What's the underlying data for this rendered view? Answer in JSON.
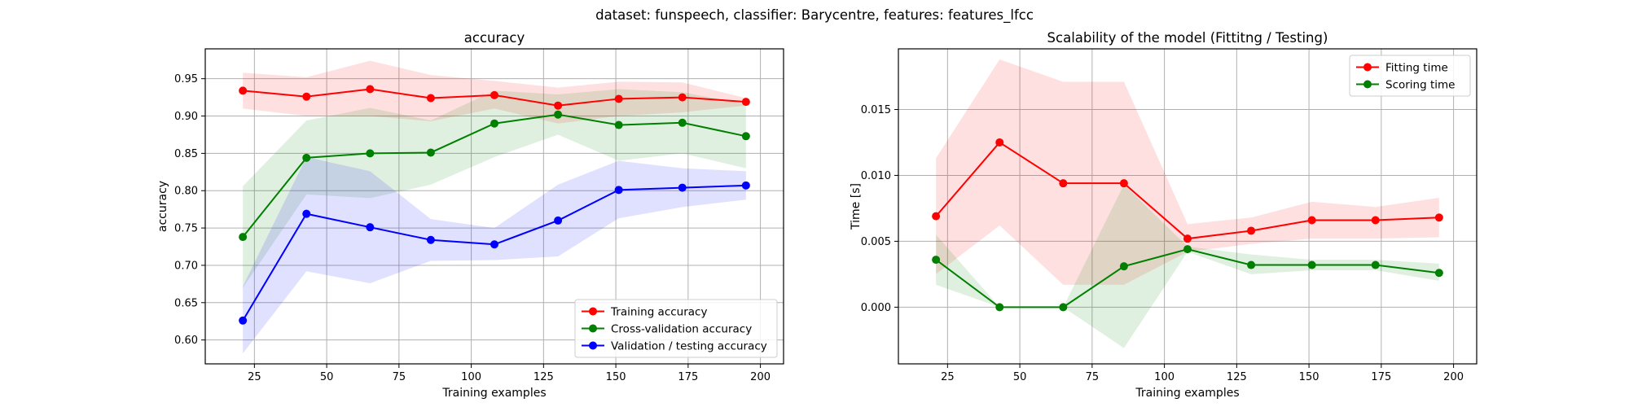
{
  "figure": {
    "suptitle": "dataset: funspeech, classifier: Barycentre, features: features_lfcc"
  },
  "chart_data": [
    {
      "type": "line",
      "title": "accuracy",
      "xlabel": "Training examples",
      "ylabel": "accuracy",
      "xlim": [
        8,
        208
      ],
      "ylim": [
        0.568,
        0.99
      ],
      "xticks": [
        25,
        50,
        75,
        100,
        125,
        150,
        175,
        200
      ],
      "yticks": [
        0.6,
        0.65,
        0.7,
        0.75,
        0.8,
        0.85,
        0.9,
        0.95
      ],
      "ytick_labels": [
        "0.60",
        "0.65",
        "0.70",
        "0.75",
        "0.80",
        "0.85",
        "0.90",
        "0.95"
      ],
      "grid": true,
      "legend_placement": "lower-right",
      "x": [
        21,
        43,
        65,
        86,
        108,
        130,
        151,
        173,
        195
      ],
      "series": [
        {
          "name": "Training accuracy",
          "color": "#ff0000",
          "values": [
            0.934,
            0.926,
            0.936,
            0.924,
            0.928,
            0.914,
            0.923,
            0.925,
            0.919
          ],
          "band_lower": [
            0.91,
            0.9,
            0.9,
            0.893,
            0.91,
            0.89,
            0.9,
            0.905,
            0.914
          ],
          "band_upper": [
            0.958,
            0.952,
            0.974,
            0.955,
            0.947,
            0.938,
            0.946,
            0.945,
            0.924
          ]
        },
        {
          "name": "Cross-validation accuracy",
          "color": "#008000",
          "values": [
            0.738,
            0.844,
            0.85,
            0.851,
            0.89,
            0.902,
            0.888,
            0.891,
            0.873
          ],
          "band_lower": [
            0.67,
            0.795,
            0.79,
            0.808,
            0.845,
            0.875,
            0.84,
            0.85,
            0.83
          ],
          "band_upper": [
            0.806,
            0.894,
            0.911,
            0.894,
            0.934,
            0.929,
            0.936,
            0.932,
            0.916
          ]
        },
        {
          "name": "Validation / testing accuracy",
          "color": "#0000ff",
          "values": [
            0.626,
            0.769,
            0.751,
            0.734,
            0.728,
            0.76,
            0.801,
            0.804,
            0.807
          ],
          "band_lower": [
            0.582,
            0.692,
            0.676,
            0.706,
            0.707,
            0.712,
            0.763,
            0.778,
            0.788
          ],
          "band_upper": [
            0.672,
            0.845,
            0.826,
            0.762,
            0.75,
            0.808,
            0.84,
            0.83,
            0.826
          ]
        }
      ]
    },
    {
      "type": "line",
      "title": "Scalability of the model (Fittitng / Testing)",
      "xlabel": "Training examples",
      "ylabel": "Time [s]",
      "xlim": [
        8,
        208
      ],
      "ylim": [
        -0.0043,
        0.0196
      ],
      "xticks": [
        25,
        50,
        75,
        100,
        125,
        150,
        175,
        200
      ],
      "yticks": [
        0.0,
        0.005,
        0.01,
        0.015
      ],
      "ytick_labels": [
        "0.000",
        "0.005",
        "0.010",
        "0.015"
      ],
      "grid": true,
      "legend_placement": "upper-right",
      "x": [
        21,
        43,
        65,
        86,
        108,
        130,
        151,
        173,
        195
      ],
      "series": [
        {
          "name": "Fitting time",
          "color": "#ff0000",
          "values": [
            0.0069,
            0.0125,
            0.0094,
            0.0094,
            0.0052,
            0.0058,
            0.0066,
            0.0066,
            0.0068
          ],
          "band_lower": [
            0.0025,
            0.0062,
            0.0017,
            0.0017,
            0.0042,
            0.0048,
            0.0052,
            0.0052,
            0.0053
          ],
          "band_upper": [
            0.0113,
            0.0188,
            0.0171,
            0.0171,
            0.0063,
            0.0068,
            0.008,
            0.0076,
            0.0083
          ]
        },
        {
          "name": "Scoring time",
          "color": "#008000",
          "values": [
            0.0036,
            0.0,
            0.0,
            0.0031,
            0.0044,
            0.0032,
            0.0032,
            0.0032,
            0.0026
          ],
          "band_lower": [
            0.0017,
            0.0,
            0.0,
            -0.0031,
            0.0042,
            0.0025,
            0.0028,
            0.0028,
            0.002
          ],
          "band_upper": [
            0.0055,
            0.0,
            0.0,
            0.0093,
            0.0046,
            0.004,
            0.0036,
            0.0036,
            0.0033
          ]
        }
      ]
    }
  ]
}
